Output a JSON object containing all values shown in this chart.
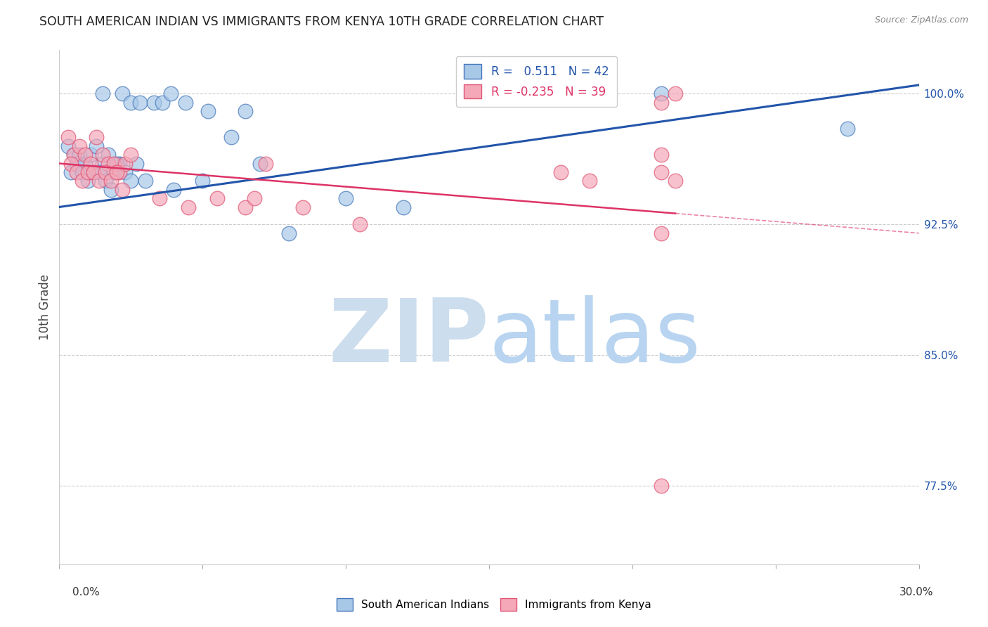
{
  "title": "SOUTH AMERICAN INDIAN VS IMMIGRANTS FROM KENYA 10TH GRADE CORRELATION CHART",
  "source": "Source: ZipAtlas.com",
  "ylabel": "10th Grade",
  "yticks": [
    77.5,
    85.0,
    92.5,
    100.0
  ],
  "ytick_labels": [
    "77.5%",
    "85.0%",
    "92.5%",
    "100.0%"
  ],
  "xmin": 0.0,
  "xmax": 30.0,
  "ymin": 73.0,
  "ymax": 102.5,
  "blue_R": 0.511,
  "blue_N": 42,
  "pink_R": -0.235,
  "pink_N": 39,
  "blue_color": "#a8c8e8",
  "pink_color": "#f4a8b8",
  "blue_edge_color": "#4477bb",
  "pink_edge_color": "#e05575",
  "blue_line_color": "#2255aa",
  "pink_line_color": "#dd3366",
  "legend_label_blue": "South American Indians",
  "legend_label_pink": "Immigrants from Kenya",
  "blue_scatter_x": [
    1.5,
    2.2,
    2.5,
    2.8,
    3.3,
    3.6,
    3.9,
    4.4,
    5.2,
    6.5,
    0.3,
    0.5,
    0.7,
    0.9,
    1.1,
    1.3,
    1.5,
    1.7,
    1.9,
    2.1,
    2.3,
    2.5,
    2.7,
    0.4,
    0.6,
    0.8,
    1.0,
    1.2,
    1.4,
    1.6,
    1.8,
    2.0,
    3.0,
    4.0,
    5.0,
    6.0,
    7.0,
    8.0,
    10.0,
    12.0,
    21.0,
    27.5
  ],
  "blue_scatter_y": [
    100.0,
    100.0,
    99.5,
    99.5,
    99.5,
    99.5,
    100.0,
    99.5,
    99.0,
    99.0,
    97.0,
    96.5,
    96.5,
    96.0,
    96.5,
    97.0,
    96.0,
    96.5,
    95.5,
    96.0,
    95.5,
    95.0,
    96.0,
    95.5,
    96.0,
    95.5,
    95.0,
    95.5,
    95.5,
    95.0,
    94.5,
    96.0,
    95.0,
    94.5,
    95.0,
    97.5,
    96.0,
    92.0,
    94.0,
    93.5,
    100.0,
    98.0
  ],
  "pink_scatter_x": [
    0.3,
    0.5,
    0.7,
    0.9,
    1.1,
    1.3,
    1.5,
    1.7,
    1.9,
    2.1,
    2.3,
    2.5,
    0.4,
    0.6,
    0.8,
    1.0,
    1.2,
    1.4,
    1.6,
    1.8,
    2.0,
    2.2,
    3.5,
    4.5,
    5.5,
    6.5,
    6.8,
    7.2,
    8.5,
    10.5,
    17.5,
    18.5,
    21.0,
    21.5,
    21.0,
    21.0,
    21.5,
    21.0,
    21.0
  ],
  "pink_scatter_y": [
    97.5,
    96.5,
    97.0,
    96.5,
    96.0,
    97.5,
    96.5,
    96.0,
    96.0,
    95.5,
    96.0,
    96.5,
    96.0,
    95.5,
    95.0,
    95.5,
    95.5,
    95.0,
    95.5,
    95.0,
    95.5,
    94.5,
    94.0,
    93.5,
    94.0,
    93.5,
    94.0,
    96.0,
    93.5,
    92.5,
    95.5,
    95.0,
    95.5,
    100.0,
    99.5,
    96.5,
    95.0,
    92.0,
    77.5
  ],
  "blue_trend_x0": 0.0,
  "blue_trend_x1": 30.0,
  "blue_trend_y0": 93.5,
  "blue_trend_y1": 100.5,
  "pink_trend_x0": 0.0,
  "pink_trend_x1": 30.0,
  "pink_trend_y0": 96.0,
  "pink_trend_y1": 92.0,
  "pink_solid_end_x": 21.5,
  "watermark_color_zip": "#ccdded",
  "watermark_color_atlas": "#b8d4f0"
}
